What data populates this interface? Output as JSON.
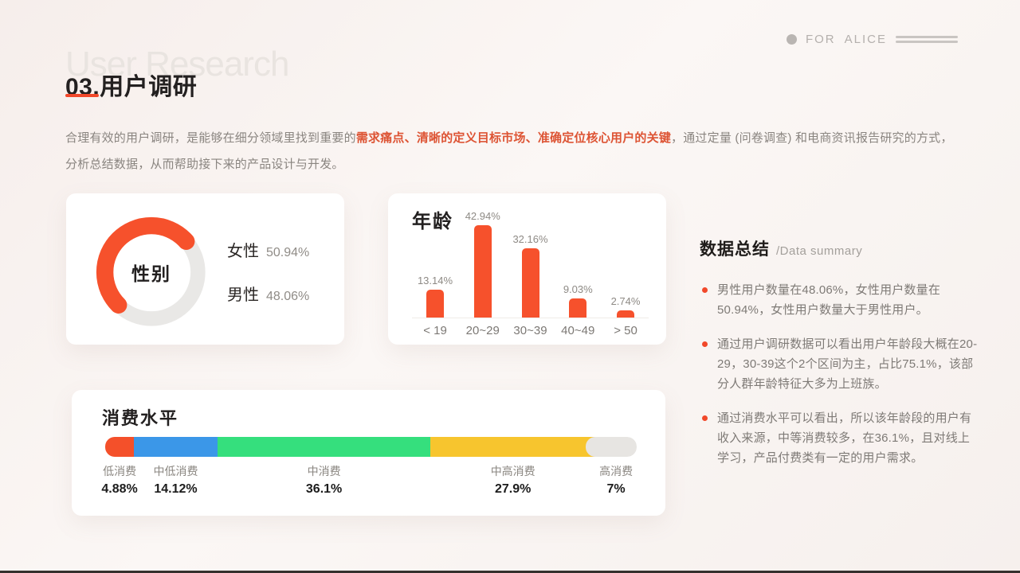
{
  "colors": {
    "accent": "#f6512c",
    "underline": "#f1482a",
    "highlight_text": "#dd5434",
    "donut_track": "#e9e8e6",
    "stack_colors": [
      "#f4502a",
      "#3b97e8",
      "#35df7d",
      "#f7c52e",
      "#e7e5e2"
    ]
  },
  "brand": {
    "for_label": "FOR",
    "name_label": "ALICE"
  },
  "header": {
    "watermark": "User Research",
    "title": "03.用户调研"
  },
  "intro": {
    "part1": "合理有效的用户调研，是能够在细分领域里找到重要的",
    "highlight": "需求痛点、清晰的定义目标市场、准确定位核心用户的关键",
    "part2": "，通过定量 (问卷调查) 和电商资讯报告研究的方式，分析总结数据，从而帮助接下来的产品设计与开发。"
  },
  "chart_data": [
    {
      "type": "pie",
      "variant": "donut",
      "title": "性别",
      "series": [
        {
          "name": "女性",
          "value": 50.94,
          "label": "50.94%"
        },
        {
          "name": "男性",
          "value": 48.06,
          "label": "48.06%"
        }
      ],
      "legend_position": "right"
    },
    {
      "type": "bar",
      "title": "年龄",
      "categories": [
        "< 19",
        "20~29",
        "30~39",
        "40~49",
        "> 50"
      ],
      "values": [
        13.14,
        42.94,
        32.16,
        9.03,
        2.74
      ],
      "value_labels": [
        "13.14%",
        "42.94%",
        "32.16%",
        "9.03%",
        "2.74%"
      ],
      "unit": "%",
      "grid": false
    },
    {
      "type": "bar",
      "variant": "horizontal-stacked",
      "title": "消费水平",
      "categories": [
        "低消费",
        "中低消费",
        "中消费",
        "中高消费",
        "高消费"
      ],
      "values": [
        4.88,
        14.12,
        36.1,
        27.9,
        7
      ],
      "value_labels": [
        "4.88%",
        "14.12%",
        "36.1%",
        "27.9%",
        "7%"
      ],
      "colors": [
        "#f4502a",
        "#3b97e8",
        "#35df7d",
        "#f7c52e",
        "#e7e5e2"
      ]
    }
  ],
  "summary": {
    "title": "数据总结",
    "subtitle": "/Data summary",
    "bullets": [
      "男性用户数量在48.06%，女性用户数量在50.94%，女性用户数量大于男性用户。",
      "通过用户调研数据可以看出用户年龄段大概在20-29，30-39这个2个区间为主，占比75.1%，该部分人群年龄特征大多为上班族。",
      "通过消费水平可以看出，所以该年龄段的用户有收入来源，中等消费较多，在36.1%，且对线上学习，产品付费类有一定的用户需求。"
    ]
  }
}
